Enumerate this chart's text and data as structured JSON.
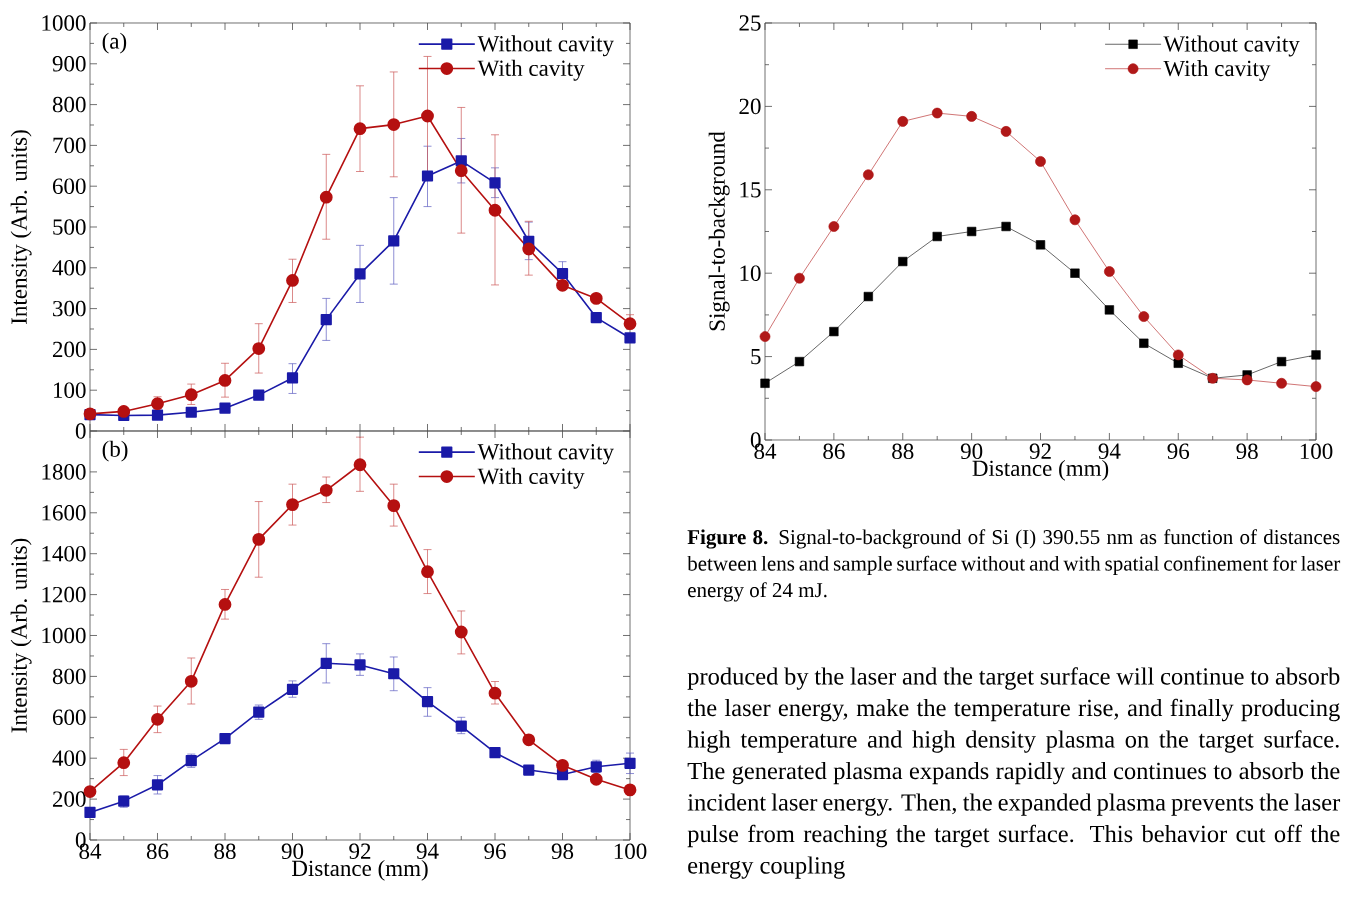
{
  "chart_data": [
    {
      "type": "line",
      "ylabel": "Intensity (Arb. units)",
      "annotations": [
        "(a)"
      ],
      "x": [
        84,
        85,
        86,
        87,
        88,
        89,
        90,
        91,
        92,
        93,
        94,
        95,
        96,
        97,
        98,
        99,
        100
      ],
      "xlim": [
        84,
        100
      ],
      "xticks": [
        84,
        86,
        88,
        90,
        92,
        94,
        96,
        98,
        100
      ],
      "ylim": [
        0,
        1000
      ],
      "yticks": [
        0,
        100,
        200,
        300,
        400,
        500,
        600,
        700,
        800,
        900,
        1000
      ],
      "tick_labels": "y",
      "legend": "top right",
      "grid": false,
      "line_style": "solid",
      "series": [
        {
          "name": "Without cavity",
          "color": "#1a1aa8",
          "marker": "square",
          "values": [
            40,
            38,
            39,
            46,
            56,
            88,
            130,
            273,
            385,
            466,
            625,
            662,
            608,
            465,
            386,
            278,
            228
          ],
          "errors": [
            null,
            null,
            null,
            null,
            null,
            null,
            [
              92,
              165
            ],
            [
              222,
              325
            ],
            [
              315,
              455
            ],
            [
              360,
              572
            ],
            [
              550,
              698
            ],
            [
              608,
              717
            ],
            [
              572,
              645
            ],
            [
              420,
              512
            ],
            [
              386,
              415
            ],
            null,
            null
          ]
        },
        {
          "name": "With cavity",
          "color": "#b51010",
          "marker": "circle",
          "values": [
            42,
            48,
            67,
            89,
            124,
            202,
            369,
            573,
            741,
            751,
            772,
            638,
            541,
            446,
            357,
            325,
            263
          ],
          "errors": [
            null,
            null,
            [
              55,
              84
            ],
            [
              65,
              115
            ],
            [
              83,
              166
            ],
            [
              142,
              263
            ],
            [
              315,
              421
            ],
            [
              470,
              678
            ],
            [
              636,
              846
            ],
            [
              623,
              880
            ],
            [
              630,
              918
            ],
            [
              485,
              793
            ],
            [
              358,
              726
            ],
            [
              382,
              514
            ],
            null,
            null,
            [
              263,
              285
            ]
          ]
        }
      ]
    },
    {
      "type": "line",
      "xlabel": "Distance (mm)",
      "ylabel": "Intensity (Arb. units)",
      "annotations": [
        "(b)"
      ],
      "x": [
        84,
        85,
        86,
        87,
        88,
        89,
        90,
        91,
        92,
        93,
        94,
        95,
        96,
        97,
        98,
        99,
        100
      ],
      "xlim": [
        84,
        100
      ],
      "xticks": [
        84,
        86,
        88,
        90,
        92,
        94,
        96,
        98,
        100
      ],
      "ylim": [
        0,
        2000
      ],
      "yticks": [
        0,
        200,
        400,
        600,
        800,
        1000,
        1200,
        1400,
        1600,
        1800
      ],
      "legend": "top right",
      "grid": false,
      "line_style": "solid",
      "series": [
        {
          "name": "Without cavity",
          "color": "#1a1aa8",
          "marker": "square",
          "values": [
            135,
            190,
            270,
            388,
            496,
            625,
            737,
            864,
            856,
            813,
            677,
            557,
            427,
            342,
            320,
            358,
            375
          ],
          "errors": [
            null,
            [
              160,
              215
            ],
            [
              225,
              315
            ],
            [
              355,
              420
            ],
            null,
            [
              590,
              660
            ],
            [
              698,
              778
            ],
            [
              768,
              960
            ],
            [
              805,
              910
            ],
            [
              730,
              895
            ],
            [
              605,
              745
            ],
            [
              520,
              600
            ],
            null,
            null,
            null,
            [
              330,
              390
            ],
            [
              325,
              425
            ]
          ]
        },
        {
          "name": "With cavity",
          "color": "#b51010",
          "marker": "circle",
          "values": [
            237,
            378,
            590,
            776,
            1152,
            1470,
            1640,
            1710,
            1835,
            1635,
            1312,
            1017,
            718,
            490,
            365,
            297,
            245
          ],
          "errors": [
            null,
            [
              315,
              443
            ],
            [
              525,
              655
            ],
            [
              665,
              890
            ],
            [
              1080,
              1225
            ],
            [
              1285,
              1655
            ],
            [
              1540,
              1740
            ],
            [
              1650,
              1775
            ],
            [
              1705,
              1970
            ],
            [
              1535,
              1740
            ],
            [
              1205,
              1420
            ],
            [
              910,
              1120
            ],
            [
              665,
              775
            ],
            null,
            null,
            null,
            null
          ]
        }
      ]
    },
    {
      "type": "line",
      "xlabel": "Distance (mm)",
      "ylabel": "Signal-to-background",
      "x": [
        84,
        85,
        86,
        87,
        88,
        89,
        90,
        91,
        92,
        93,
        94,
        95,
        96,
        97,
        98,
        99,
        100
      ],
      "xlim": [
        84,
        100
      ],
      "xticks": [
        84,
        86,
        88,
        90,
        92,
        94,
        96,
        98,
        100
      ],
      "ylim": [
        0,
        25
      ],
      "yticks": [
        0,
        5,
        10,
        15,
        20,
        25
      ],
      "legend": "top right",
      "grid": false,
      "line_style": "solid",
      "annotations": [
        "**Figure 8.** Signal-to-background of Si (I) 390.55 nm as function of distances between lens and sample surface without and with spatial confinement for laser energy of 24 mJ.",
        "produced by the laser and the target surface will continue to absorb the laser energy, make the temperature rise, and finally producing high temperature and high density plasma on the target surface. The generated plasma expands rapidly and continues to absorb the incident laser energy. Then, the expanded plasma prevents the laser pulse from reaching the target surface. This behavior cut off the energy coupling"
      ],
      "series": [
        {
          "name": "Without cavity",
          "color": "#000000",
          "marker": "square",
          "values": [
            3.4,
            4.7,
            6.5,
            8.6,
            10.7,
            12.2,
            12.5,
            12.8,
            11.7,
            10.0,
            7.8,
            5.8,
            4.6,
            3.7,
            3.9,
            4.7,
            5.1
          ]
        },
        {
          "name": "With cavity",
          "color": "#b01818",
          "marker": "circle",
          "values": [
            6.2,
            9.7,
            12.8,
            15.9,
            19.1,
            19.6,
            19.4,
            18.5,
            16.7,
            13.2,
            10.1,
            7.4,
            5.1,
            3.7,
            3.6,
            3.4,
            3.2
          ]
        }
      ]
    }
  ]
}
